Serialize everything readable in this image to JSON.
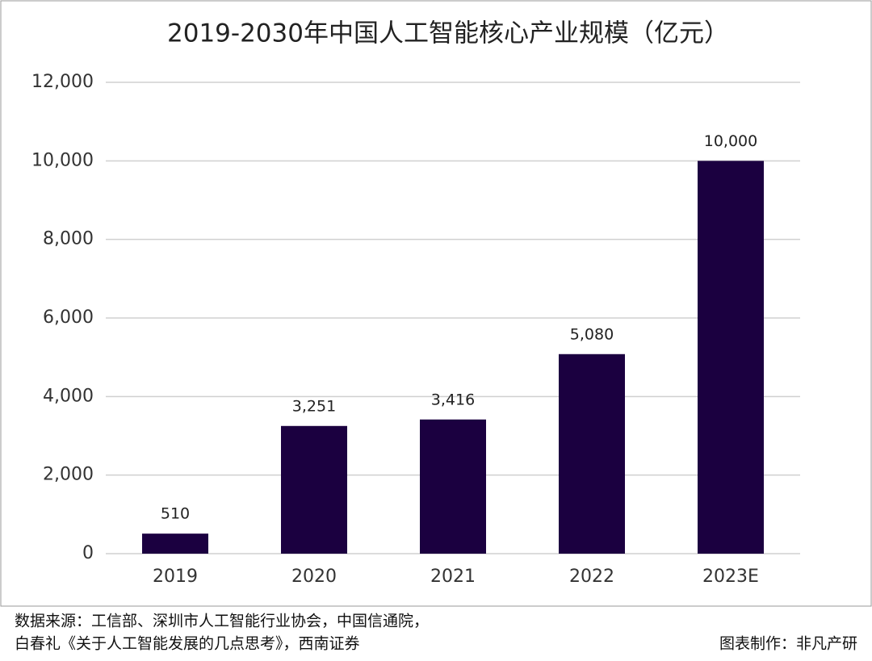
{
  "chart_data": {
    "type": "bar",
    "title": "2019-2030年中国人工智能核心产业规模（亿元）",
    "categories": [
      "2019",
      "2020",
      "2021",
      "2022",
      "2023E"
    ],
    "values": [
      510,
      3251,
      3416,
      5080,
      10000
    ],
    "value_labels": [
      "510",
      "3,251",
      "3,416",
      "5,080",
      "10,000"
    ],
    "color": "#1b0040",
    "ylim": [
      0,
      12000
    ],
    "yticks": [
      0,
      {
        "value": 2000,
        "label": "2,000"
      },
      {
        "value": 4000,
        "label": "4,000"
      },
      {
        "value": 6000,
        "label": "6,000"
      },
      {
        "value": 8000,
        "label": "8,000"
      },
      {
        "value": 10000,
        "label": "10,000"
      },
      {
        "value": 12000,
        "label": "12,000"
      }
    ],
    "grid": true,
    "source": [
      "数据来源：工信部、深圳市人工智能行业协会，中国信通院，",
      "白春礼《关于人工智能发展的几点思考》，西南证券"
    ],
    "credit": "图表制作：非凡产研"
  }
}
